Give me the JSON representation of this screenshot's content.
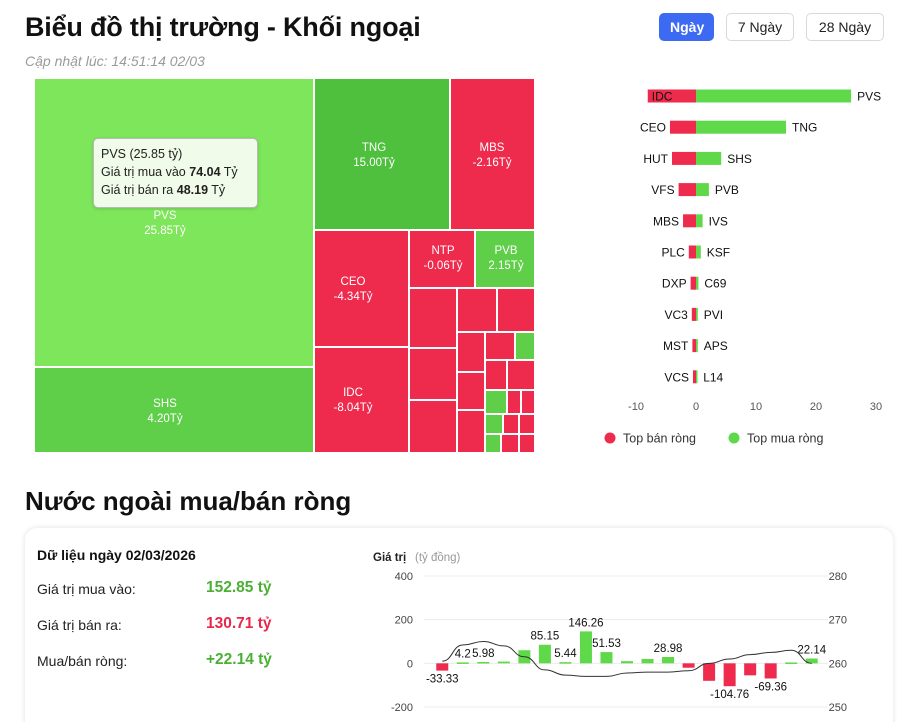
{
  "header": {
    "title": "Biểu đồ thị trường - Khối ngoại",
    "updated": "Cập nhật lúc: 14:51:14 02/03"
  },
  "tabs": [
    {
      "label": "Ngày",
      "active": true
    },
    {
      "label": "7 Ngày",
      "active": false
    },
    {
      "label": "28 Ngày",
      "active": false
    }
  ],
  "treemap": {
    "tiles": [
      {
        "id": "pvs",
        "name": "PVS",
        "value": "25.85Tỷ"
      },
      {
        "id": "shs",
        "name": "SHS",
        "value": "4.20Tỷ"
      },
      {
        "id": "tng",
        "name": "TNG",
        "value": "15.00Tỷ"
      },
      {
        "id": "mbs",
        "name": "MBS",
        "value": "-2.16Tỷ"
      },
      {
        "id": "ceo",
        "name": "CEO",
        "value": "-4.34Tỷ"
      },
      {
        "id": "ntp",
        "name": "NTP",
        "value": "-0.06Tỷ"
      },
      {
        "id": "pvb",
        "name": "PVB",
        "value": "2.15Tỷ"
      },
      {
        "id": "idc",
        "name": "IDC",
        "value": "-8.04Tỷ"
      }
    ],
    "tooltip": {
      "line1": "PVS (25.85 tỷ)",
      "buy_label": "Giá trị mua vào",
      "buy_value": "74.04",
      "sell_label": "Giá trị bán ra",
      "sell_value": "48.19",
      "unit": "Tỷ"
    },
    "colors": {
      "buy": "#7de65a",
      "sell": "#ee2a4d"
    }
  },
  "top_chart": {
    "sell": [
      {
        "code": "IDC",
        "value": -8.04
      },
      {
        "code": "CEO",
        "value": -4.34
      },
      {
        "code": "HUT",
        "value": -4.0
      },
      {
        "code": "VFS",
        "value": -2.9
      },
      {
        "code": "MBS",
        "value": -2.16
      },
      {
        "code": "PLC",
        "value": -1.2
      },
      {
        "code": "DXP",
        "value": -0.9
      },
      {
        "code": "VC3",
        "value": -0.7
      },
      {
        "code": "MST",
        "value": -0.6
      },
      {
        "code": "VCS",
        "value": -0.5
      }
    ],
    "buy": [
      {
        "code": "PVS",
        "value": 25.85
      },
      {
        "code": "TNG",
        "value": 15.0
      },
      {
        "code": "SHS",
        "value": 4.2
      },
      {
        "code": "PVB",
        "value": 2.15
      },
      {
        "code": "IVS",
        "value": 1.1
      },
      {
        "code": "KSF",
        "value": 0.8
      },
      {
        "code": "C69",
        "value": 0.4
      },
      {
        "code": "PVI",
        "value": 0.3
      },
      {
        "code": "APS",
        "value": 0.3
      },
      {
        "code": "L14",
        "value": 0.2
      }
    ],
    "xticks": [
      "-10",
      "0",
      "10",
      "20",
      "30"
    ],
    "xlim": [
      -10,
      30
    ],
    "legend": {
      "sell": "Top bán ròng",
      "buy": "Top mua ròng"
    },
    "colors": {
      "sell": "#ee2a4d",
      "buy": "#5fd84a"
    }
  },
  "section2": {
    "heading": "Nước ngoài mua/bán ròng",
    "date_title": "Dữ liệu ngày 02/03/2026",
    "rows": [
      {
        "label": "Giá trị mua vào:",
        "value": "152.85 tỷ",
        "tone": "green"
      },
      {
        "label": "Giá trị bán ra:",
        "value": "130.71 tỷ",
        "tone": "red"
      },
      {
        "label": "Mua/bán ròng:",
        "value": "+22.14 tỷ",
        "tone": "green"
      }
    ]
  },
  "chart_data": {
    "type": "bar",
    "title": "",
    "ylabel": "Giá trị",
    "ylabel_unit": "(tỷ đồng)",
    "yticks_left": [
      "400",
      "200",
      "0",
      "-200"
    ],
    "yticks_right": [
      "280",
      "270",
      "260",
      "250"
    ],
    "ylim": [
      -200,
      400
    ],
    "ylim_right": [
      250,
      280
    ],
    "series": [
      {
        "values": [
          -33.33,
          4.2,
          5.98,
          8.0,
          60.0,
          85.15,
          5.44,
          146.26,
          51.53,
          10.0,
          20.0,
          28.98,
          -20.0,
          -80.0,
          -104.76,
          -55.0,
          -69.36,
          4.0,
          22.14
        ],
        "labels": [
          "-33.33",
          "4.2",
          "5.98",
          "",
          "",
          "85.15",
          "5.44",
          "146.26",
          "51.53",
          "",
          "",
          "28.98",
          "",
          "",
          "-104.76",
          "",
          "-69.36",
          "",
          "22.14"
        ]
      },
      {
        "type": "line",
        "values": [
          260.5,
          264.2,
          265.0,
          264.0,
          261.5,
          258.5,
          257.3,
          257.0,
          257.0,
          257.8,
          258.0,
          258.0,
          258.3,
          260.0,
          261.0,
          262.0,
          262.5,
          263.0,
          260.0
        ]
      }
    ],
    "colors": {
      "positive": "#5fd84a",
      "negative": "#ee2a4d",
      "line": "#333333"
    }
  }
}
